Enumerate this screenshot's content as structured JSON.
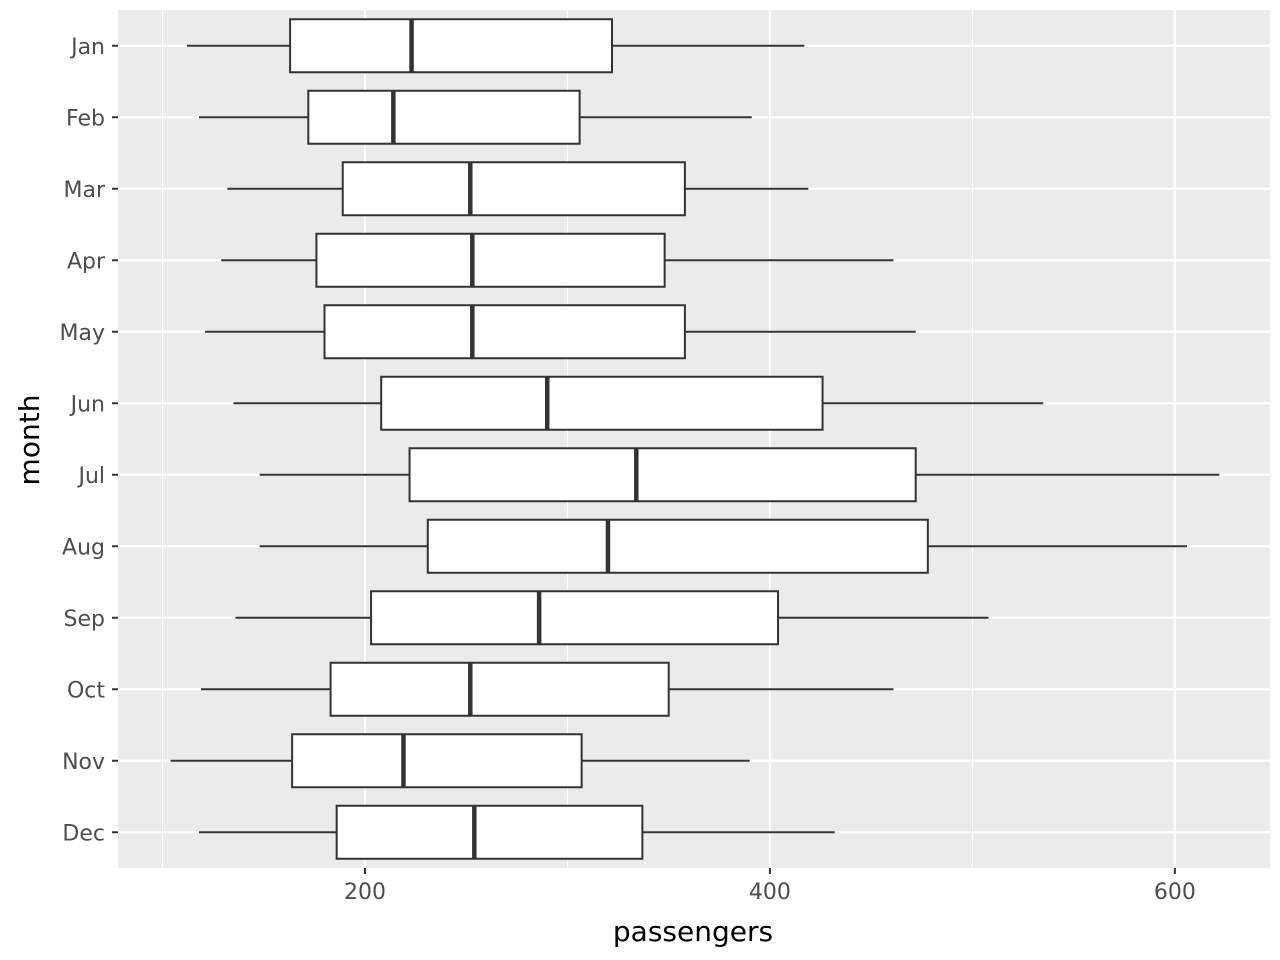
{
  "chart_data": {
    "type": "boxplot",
    "orientation": "horizontal",
    "xlabel": "passengers",
    "ylabel": "month",
    "xlim": [
      78,
      647
    ],
    "xticks": [
      200,
      400,
      600
    ],
    "grid": true,
    "legend": "none",
    "colors": {
      "panel": "#ebebeb",
      "grid": "#ffffff",
      "box_fill": "#ffffff",
      "box_stroke": "#333333",
      "text": "#4d4d4d"
    },
    "categories": [
      "Jan",
      "Feb",
      "Mar",
      "Apr",
      "May",
      "Jun",
      "Jul",
      "Aug",
      "Sep",
      "Oct",
      "Nov",
      "Dec"
    ],
    "boxes": [
      {
        "month": "Jan",
        "min": 112,
        "q1": 163,
        "median": 223,
        "q3": 322,
        "max": 417
      },
      {
        "month": "Feb",
        "min": 118,
        "q1": 172,
        "median": 214,
        "q3": 306,
        "max": 391
      },
      {
        "month": "Mar",
        "min": 132,
        "q1": 189,
        "median": 252,
        "q3": 358,
        "max": 419
      },
      {
        "month": "Apr",
        "min": 129,
        "q1": 176,
        "median": 253,
        "q3": 348,
        "max": 461
      },
      {
        "month": "May",
        "min": 121,
        "q1": 180,
        "median": 253,
        "q3": 358,
        "max": 472
      },
      {
        "month": "Jun",
        "min": 135,
        "q1": 208,
        "median": 290,
        "q3": 426,
        "max": 535
      },
      {
        "month": "Jul",
        "min": 148,
        "q1": 222,
        "median": 334,
        "q3": 472,
        "max": 622
      },
      {
        "month": "Aug",
        "min": 148,
        "q1": 231,
        "median": 320,
        "q3": 478,
        "max": 606
      },
      {
        "month": "Sep",
        "min": 136,
        "q1": 203,
        "median": 286,
        "q3": 404,
        "max": 508
      },
      {
        "month": "Oct",
        "min": 119,
        "q1": 183,
        "median": 252,
        "q3": 350,
        "max": 461
      },
      {
        "month": "Nov",
        "min": 104,
        "q1": 164,
        "median": 219,
        "q3": 307,
        "max": 390
      },
      {
        "month": "Dec",
        "min": 118,
        "q1": 186,
        "median": 254,
        "q3": 337,
        "max": 432
      }
    ]
  }
}
